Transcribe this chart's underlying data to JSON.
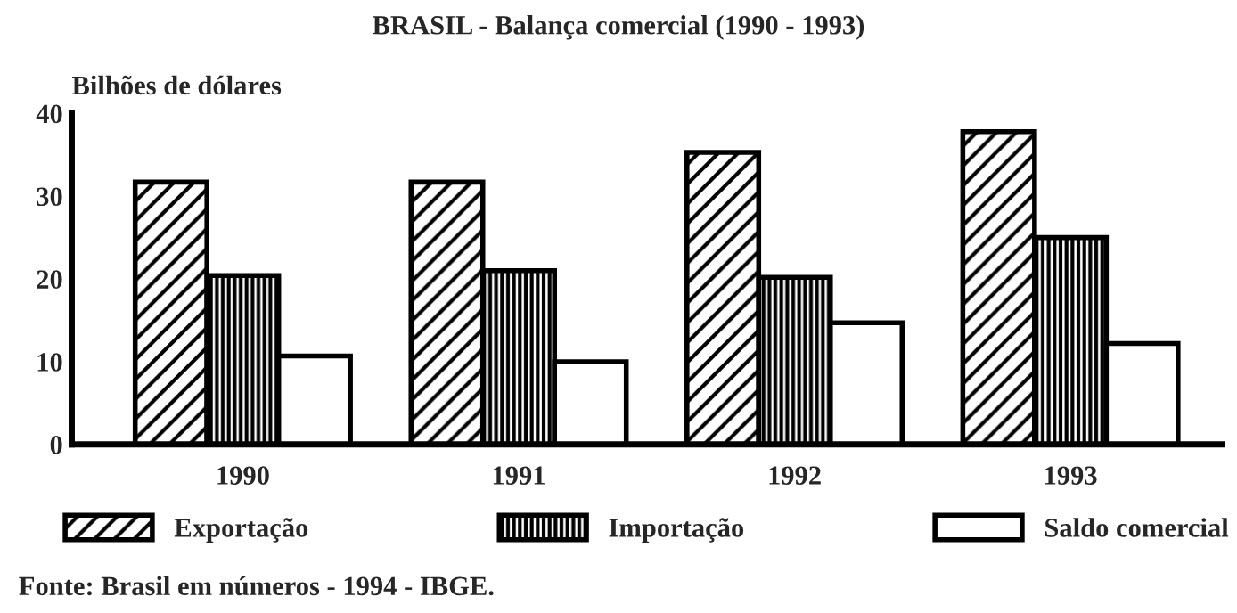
{
  "chart_data": {
    "type": "bar",
    "title": "BRASIL - Balança comercial (1990 - 1993)",
    "ylabel": "Bilhões de dólares",
    "categories": [
      "1990",
      "1991",
      "1992",
      "1993"
    ],
    "series": [
      {
        "name": "Exportação",
        "color": "#000000",
        "values": [
          31.7,
          31.7,
          35.3,
          37.8
        ]
      },
      {
        "name": "Importação",
        "color": "#000000",
        "values": [
          20.4,
          21.0,
          20.2,
          25.0
        ]
      },
      {
        "name": "Saldo comercial",
        "color": "#ffffff",
        "values": [
          10.7,
          10.0,
          14.7,
          12.2
        ]
      }
    ],
    "ylim": [
      0,
      40
    ],
    "yticks": [
      0,
      10,
      20,
      30,
      40
    ],
    "grid": false,
    "legend": "bottom",
    "annotations": [
      "Fonte: Brasil em números - 1994 - IBGE."
    ]
  }
}
